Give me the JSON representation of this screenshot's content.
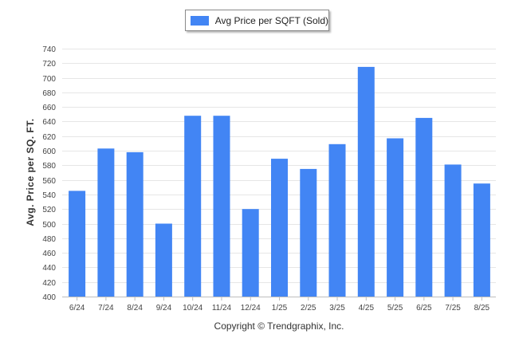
{
  "legend": {
    "label": "Avg Price per SQFT (Sold)"
  },
  "copyright": "Copyright © Trendgraphix, Inc.",
  "chart_data": {
    "type": "bar",
    "title": "",
    "xlabel": "",
    "ylabel": "Avg. Price per SQ. FT.",
    "categories": [
      "6/24",
      "7/24",
      "8/24",
      "9/24",
      "10/24",
      "11/24",
      "12/24",
      "1/25",
      "2/25",
      "3/25",
      "4/25",
      "5/25",
      "6/25",
      "7/25",
      "8/25"
    ],
    "series": [
      {
        "name": "Avg Price per SQFT (Sold)",
        "color": "#4285f4",
        "values": [
          545,
          603,
          598,
          500,
          648,
          648,
          520,
          589,
          575,
          609,
          715,
          617,
          645,
          581,
          555
        ]
      }
    ],
    "ylim": [
      400,
      740
    ],
    "yticks": [
      400,
      420,
      440,
      460,
      480,
      500,
      520,
      540,
      560,
      580,
      600,
      620,
      640,
      660,
      680,
      700,
      720,
      740
    ],
    "grid": true,
    "legend_position": "top-center"
  }
}
